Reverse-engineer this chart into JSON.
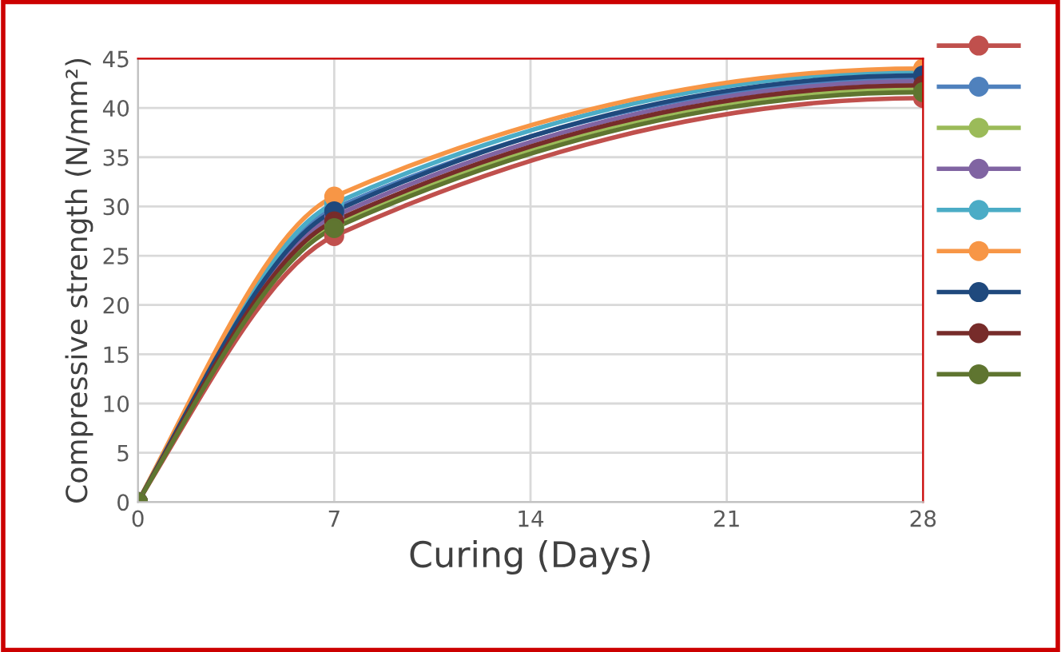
{
  "chart_data": {
    "type": "line",
    "xlabel": "Curing (Days)",
    "ylabel": "Compressive strength (N/mm²)",
    "x": [
      0,
      7,
      28
    ],
    "xlim": [
      0,
      28
    ],
    "xticks": [
      0,
      7,
      14,
      21,
      28
    ],
    "ylim": [
      0,
      45
    ],
    "yticks": [
      0,
      5,
      10,
      15,
      20,
      25,
      30,
      35,
      40,
      45
    ],
    "grid": true,
    "marker": "circle",
    "line_style": "solid",
    "series": [
      {
        "color": "#c0504d",
        "values": [
          0,
          27.0,
          41.0
        ]
      },
      {
        "color": "#4f81bd",
        "values": [
          0,
          29.8,
          43.0
        ]
      },
      {
        "color": "#9bbb59",
        "values": [
          0,
          28.2,
          42.0
        ]
      },
      {
        "color": "#8064a2",
        "values": [
          0,
          29.0,
          42.7
        ]
      },
      {
        "color": "#4bacc6",
        "values": [
          0,
          30.3,
          43.7
        ]
      },
      {
        "color": "#f79646",
        "values": [
          0,
          31.0,
          44.0
        ]
      },
      {
        "color": "#1f497d",
        "values": [
          0,
          29.5,
          43.3
        ]
      },
      {
        "color": "#772c2a",
        "values": [
          0,
          28.5,
          42.3
        ]
      },
      {
        "color": "#5f7530",
        "values": [
          0,
          27.8,
          41.6
        ]
      }
    ]
  }
}
